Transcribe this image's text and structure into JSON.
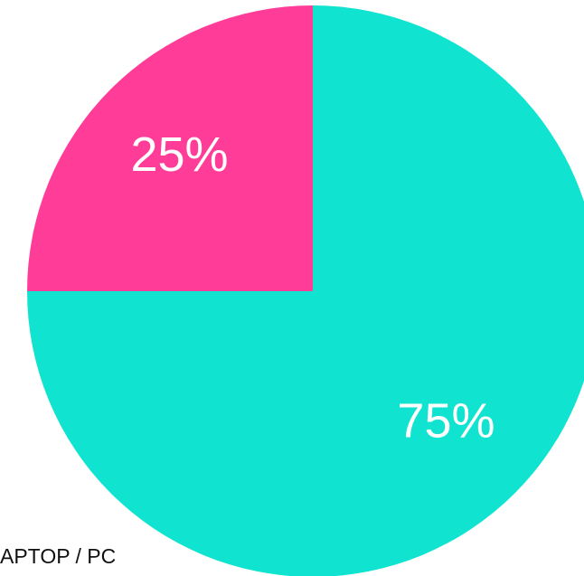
{
  "chart_data": {
    "type": "pie",
    "categories": [
      "APTOP / PC",
      null
    ],
    "values": [
      75,
      25
    ],
    "value_labels": [
      "75%",
      "25%"
    ],
    "colors": [
      "#10e3cf",
      "#ff3d98"
    ]
  }
}
